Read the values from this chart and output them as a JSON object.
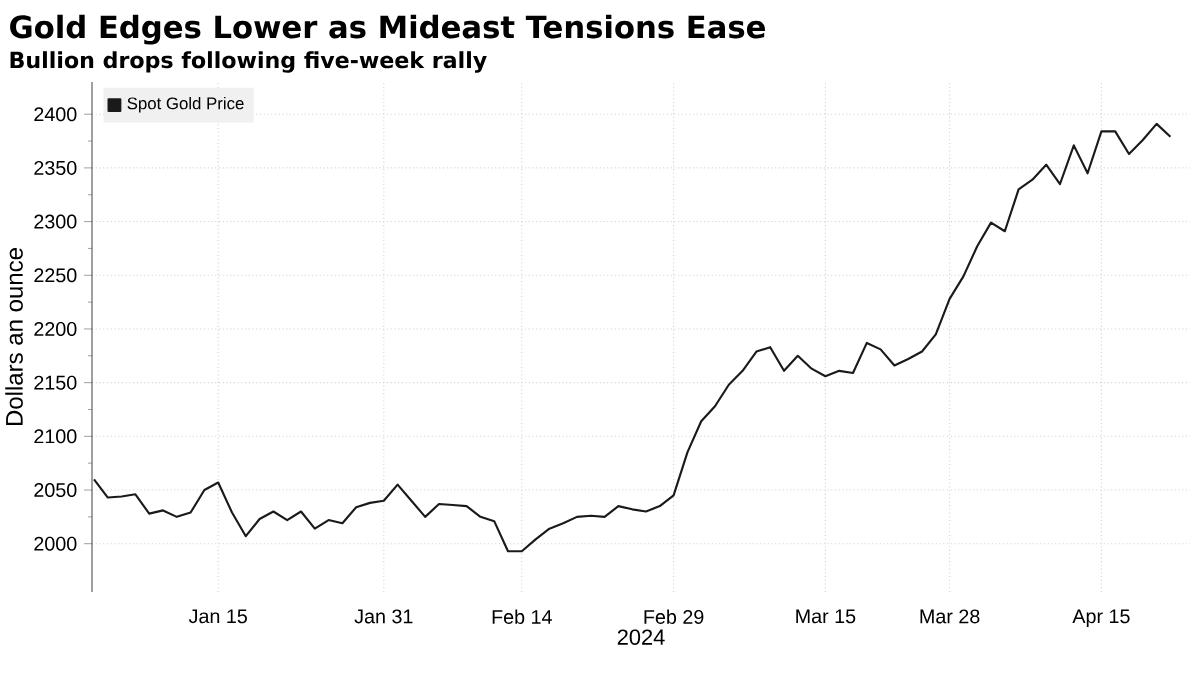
{
  "chart_data": {
    "type": "line",
    "title": "Gold Edges Lower as Mideast Tensions Ease",
    "subtitle": "Bullion drops following five-week rally",
    "xlabel": "2024",
    "ylabel": "Dollars an ounce",
    "categories": [
      null,
      null,
      null,
      null,
      null,
      null,
      null,
      null,
      null,
      "Jan 15",
      null,
      null,
      null,
      null,
      null,
      null,
      null,
      null,
      null,
      null,
      null,
      "Jan 31",
      null,
      null,
      null,
      null,
      null,
      null,
      null,
      null,
      null,
      "Feb 14",
      null,
      null,
      null,
      null,
      null,
      null,
      null,
      null,
      null,
      null,
      "Feb 29",
      null,
      null,
      null,
      null,
      null,
      null,
      null,
      null,
      null,
      null,
      "Mar 15",
      null,
      null,
      null,
      null,
      null,
      null,
      null,
      null,
      "Mar 28",
      null,
      null,
      null,
      null,
      null,
      null,
      null,
      null,
      null,
      null,
      "Apr 15",
      null,
      null,
      null,
      null,
      null
    ],
    "series": [
      {
        "name": "Spot Gold Price",
        "color": "#1a1a1a",
        "values": [
          2060,
          2043,
          2044,
          2046,
          2028,
          2031,
          2025,
          2029,
          2050,
          2057,
          2029,
          2007,
          2023,
          2030,
          2022,
          2030,
          2014,
          2022,
          2019,
          2034,
          2038,
          2040,
          2055,
          2040,
          2025,
          2037,
          2036,
          2035,
          2025,
          2021,
          1993,
          1993,
          2004,
          2014,
          2019,
          2025,
          2026,
          2025,
          2035,
          2032,
          2030,
          2035,
          2045,
          2085,
          2114,
          2128,
          2148,
          2161,
          2179,
          2183,
          2161,
          2175,
          2163,
          2156,
          2161,
          2159,
          2187,
          2181,
          2166,
          2172,
          2179,
          2195,
          2228,
          2249,
          2277,
          2299,
          2291,
          2330,
          2339,
          2353,
          2335,
          2371,
          2345,
          2384,
          2384,
          2363,
          2376,
          2391,
          2379
        ]
      }
    ],
    "ylim": [
      1955,
      2430
    ],
    "yticks": [
      2000,
      2050,
      2100,
      2150,
      2200,
      2250,
      2300,
      2350,
      2400
    ],
    "grid": true,
    "legend": "top left"
  }
}
